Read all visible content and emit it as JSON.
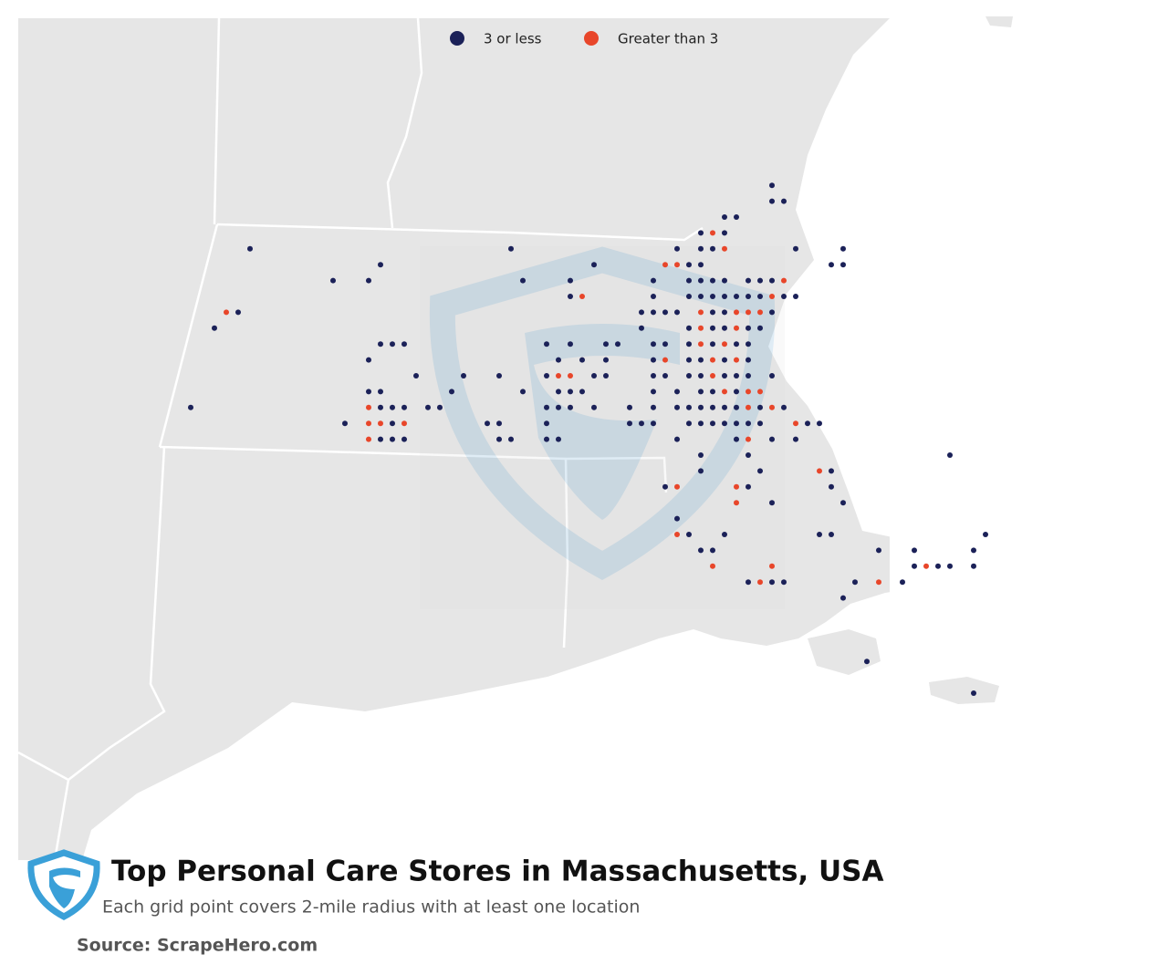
{
  "map": {
    "title": "Top Personal Care Stores in Massachusetts, USA",
    "subtitle": "Each grid point covers 2-mile radius with at least one location",
    "source": "Source: ScrapeHero.com",
    "series": [
      {
        "name": "3 or less",
        "color": "#1b2158",
        "points": [
          [
            -70.95,
            42.7
          ],
          [
            -70.95,
            42.65
          ],
          [
            -70.9,
            42.65
          ],
          [
            -71.15,
            42.6
          ],
          [
            -71.1,
            42.6
          ],
          [
            -71.25,
            42.55
          ],
          [
            -71.15,
            42.55
          ],
          [
            -73.15,
            42.5
          ],
          [
            -72.05,
            42.5
          ],
          [
            -71.35,
            42.5
          ],
          [
            -71.25,
            42.5
          ],
          [
            -71.2,
            42.5
          ],
          [
            -70.85,
            42.5
          ],
          [
            -70.65,
            42.5
          ],
          [
            -72.6,
            42.45
          ],
          [
            -71.7,
            42.45
          ],
          [
            -71.3,
            42.45
          ],
          [
            -71.25,
            42.45
          ],
          [
            -70.7,
            42.45
          ],
          [
            -70.65,
            42.45
          ],
          [
            -72.8,
            42.4
          ],
          [
            -72.65,
            42.4
          ],
          [
            -72.0,
            42.4
          ],
          [
            -71.8,
            42.4
          ],
          [
            -71.45,
            42.4
          ],
          [
            -71.3,
            42.4
          ],
          [
            -71.25,
            42.4
          ],
          [
            -71.2,
            42.4
          ],
          [
            -71.15,
            42.4
          ],
          [
            -71.05,
            42.4
          ],
          [
            -71.0,
            42.4
          ],
          [
            -70.95,
            42.4
          ],
          [
            -71.8,
            42.35
          ],
          [
            -71.45,
            42.35
          ],
          [
            -71.3,
            42.35
          ],
          [
            -71.25,
            42.35
          ],
          [
            -71.2,
            42.35
          ],
          [
            -71.15,
            42.35
          ],
          [
            -71.1,
            42.35
          ],
          [
            -71.05,
            42.35
          ],
          [
            -71.0,
            42.35
          ],
          [
            -70.9,
            42.35
          ],
          [
            -70.85,
            42.35
          ],
          [
            -73.2,
            42.3
          ],
          [
            -71.5,
            42.3
          ],
          [
            -71.45,
            42.3
          ],
          [
            -71.4,
            42.3
          ],
          [
            -71.35,
            42.3
          ],
          [
            -71.2,
            42.3
          ],
          [
            -71.15,
            42.3
          ],
          [
            -70.95,
            42.3
          ],
          [
            -73.3,
            42.25
          ],
          [
            -71.5,
            42.25
          ],
          [
            -71.3,
            42.25
          ],
          [
            -71.2,
            42.25
          ],
          [
            -71.15,
            42.25
          ],
          [
            -71.05,
            42.25
          ],
          [
            -71.0,
            42.25
          ],
          [
            -72.6,
            42.2
          ],
          [
            -72.55,
            42.2
          ],
          [
            -72.5,
            42.2
          ],
          [
            -71.9,
            42.2
          ],
          [
            -71.8,
            42.2
          ],
          [
            -71.65,
            42.2
          ],
          [
            -71.6,
            42.2
          ],
          [
            -71.45,
            42.2
          ],
          [
            -71.4,
            42.2
          ],
          [
            -71.3,
            42.2
          ],
          [
            -71.2,
            42.2
          ],
          [
            -71.1,
            42.2
          ],
          [
            -71.05,
            42.2
          ],
          [
            -72.65,
            42.15
          ],
          [
            -71.85,
            42.15
          ],
          [
            -71.75,
            42.15
          ],
          [
            -71.65,
            42.15
          ],
          [
            -71.45,
            42.15
          ],
          [
            -71.3,
            42.15
          ],
          [
            -71.25,
            42.15
          ],
          [
            -71.15,
            42.15
          ],
          [
            -71.05,
            42.15
          ],
          [
            -72.45,
            42.1
          ],
          [
            -72.25,
            42.1
          ],
          [
            -72.1,
            42.1
          ],
          [
            -71.9,
            42.1
          ],
          [
            -71.7,
            42.1
          ],
          [
            -71.65,
            42.1
          ],
          [
            -71.45,
            42.1
          ],
          [
            -71.4,
            42.1
          ],
          [
            -71.3,
            42.1
          ],
          [
            -71.25,
            42.1
          ],
          [
            -71.15,
            42.1
          ],
          [
            -71.1,
            42.1
          ],
          [
            -71.05,
            42.1
          ],
          [
            -70.95,
            42.1
          ],
          [
            -72.65,
            42.05
          ],
          [
            -72.6,
            42.05
          ],
          [
            -72.3,
            42.05
          ],
          [
            -72.0,
            42.05
          ],
          [
            -71.85,
            42.05
          ],
          [
            -71.8,
            42.05
          ],
          [
            -71.75,
            42.05
          ],
          [
            -71.45,
            42.05
          ],
          [
            -71.35,
            42.05
          ],
          [
            -71.25,
            42.05
          ],
          [
            -71.2,
            42.05
          ],
          [
            -71.1,
            42.05
          ],
          [
            -73.4,
            42.0
          ],
          [
            -72.6,
            42.0
          ],
          [
            -72.55,
            42.0
          ],
          [
            -72.5,
            42.0
          ],
          [
            -72.4,
            42.0
          ],
          [
            -72.35,
            42.0
          ],
          [
            -71.9,
            42.0
          ],
          [
            -71.85,
            42.0
          ],
          [
            -71.8,
            42.0
          ],
          [
            -71.7,
            42.0
          ],
          [
            -71.55,
            42.0
          ],
          [
            -71.45,
            42.0
          ],
          [
            -71.35,
            42.0
          ],
          [
            -71.3,
            42.0
          ],
          [
            -71.25,
            42.0
          ],
          [
            -71.2,
            42.0
          ],
          [
            -71.15,
            42.0
          ],
          [
            -71.1,
            42.0
          ],
          [
            -71.0,
            42.0
          ],
          [
            -70.9,
            42.0
          ],
          [
            -72.75,
            41.95
          ],
          [
            -72.55,
            41.95
          ],
          [
            -72.15,
            41.95
          ],
          [
            -72.1,
            41.95
          ],
          [
            -71.9,
            41.95
          ],
          [
            -71.55,
            41.95
          ],
          [
            -71.5,
            41.95
          ],
          [
            -71.45,
            41.95
          ],
          [
            -71.3,
            41.95
          ],
          [
            -71.25,
            41.95
          ],
          [
            -71.2,
            41.95
          ],
          [
            -71.15,
            41.95
          ],
          [
            -71.1,
            41.95
          ],
          [
            -71.05,
            41.95
          ],
          [
            -71.0,
            41.95
          ],
          [
            -70.8,
            41.95
          ],
          [
            -70.75,
            41.95
          ],
          [
            -72.6,
            41.9
          ],
          [
            -72.55,
            41.9
          ],
          [
            -72.5,
            41.9
          ],
          [
            -72.1,
            41.9
          ],
          [
            -72.05,
            41.9
          ],
          [
            -71.9,
            41.9
          ],
          [
            -71.85,
            41.9
          ],
          [
            -71.35,
            41.9
          ],
          [
            -71.1,
            41.9
          ],
          [
            -70.95,
            41.9
          ],
          [
            -70.85,
            41.9
          ],
          [
            -71.25,
            41.85
          ],
          [
            -71.05,
            41.85
          ],
          [
            -70.2,
            41.85
          ],
          [
            -71.25,
            41.8
          ],
          [
            -71.0,
            41.8
          ],
          [
            -70.7,
            41.8
          ],
          [
            -71.4,
            41.75
          ],
          [
            -71.05,
            41.75
          ],
          [
            -70.7,
            41.75
          ],
          [
            -70.95,
            41.7
          ],
          [
            -70.65,
            41.7
          ],
          [
            -71.35,
            41.65
          ],
          [
            -71.3,
            41.6
          ],
          [
            -71.15,
            41.6
          ],
          [
            -70.75,
            41.6
          ],
          [
            -70.7,
            41.6
          ],
          [
            -70.05,
            41.6
          ],
          [
            -71.25,
            41.55
          ],
          [
            -71.2,
            41.55
          ],
          [
            -70.5,
            41.55
          ],
          [
            -70.35,
            41.55
          ],
          [
            -70.1,
            41.55
          ],
          [
            -70.35,
            41.5
          ],
          [
            -70.25,
            41.5
          ],
          [
            -70.2,
            41.5
          ],
          [
            -70.1,
            41.5
          ],
          [
            -71.05,
            41.45
          ],
          [
            -70.95,
            41.45
          ],
          [
            -70.9,
            41.45
          ],
          [
            -70.6,
            41.45
          ],
          [
            -70.4,
            41.45
          ],
          [
            -70.65,
            41.4
          ],
          [
            -70.55,
            41.2
          ],
          [
            -70.1,
            41.1
          ]
        ]
      },
      {
        "name": "Greater than 3",
        "color": "#e8462a",
        "points": [
          [
            -71.2,
            42.55
          ],
          [
            -71.15,
            42.5
          ],
          [
            -71.4,
            42.45
          ],
          [
            -71.35,
            42.45
          ],
          [
            -70.9,
            42.4
          ],
          [
            -71.75,
            42.35
          ],
          [
            -70.95,
            42.35
          ],
          [
            -73.25,
            42.3
          ],
          [
            -71.25,
            42.3
          ],
          [
            -71.1,
            42.3
          ],
          [
            -71.05,
            42.3
          ],
          [
            -71.0,
            42.3
          ],
          [
            -71.25,
            42.25
          ],
          [
            -71.1,
            42.25
          ],
          [
            -71.25,
            42.2
          ],
          [
            -71.15,
            42.2
          ],
          [
            -71.4,
            42.15
          ],
          [
            -71.2,
            42.15
          ],
          [
            -71.1,
            42.15
          ],
          [
            -71.85,
            42.1
          ],
          [
            -71.8,
            42.1
          ],
          [
            -71.2,
            42.1
          ],
          [
            -71.15,
            42.05
          ],
          [
            -71.05,
            42.05
          ],
          [
            -71.0,
            42.05
          ],
          [
            -72.65,
            42.0
          ],
          [
            -71.05,
            42.0
          ],
          [
            -70.95,
            42.0
          ],
          [
            -72.65,
            41.95
          ],
          [
            -72.6,
            41.95
          ],
          [
            -72.5,
            41.95
          ],
          [
            -70.85,
            41.95
          ],
          [
            -72.65,
            41.9
          ],
          [
            -71.05,
            41.9
          ],
          [
            -70.75,
            41.8
          ],
          [
            -71.35,
            41.75
          ],
          [
            -71.1,
            41.75
          ],
          [
            -71.1,
            41.7
          ],
          [
            -71.35,
            41.6
          ],
          [
            -71.2,
            41.5
          ],
          [
            -70.95,
            41.5
          ],
          [
            -70.3,
            41.5
          ],
          [
            -71.0,
            41.45
          ],
          [
            -70.5,
            41.45
          ]
        ]
      }
    ]
  }
}
